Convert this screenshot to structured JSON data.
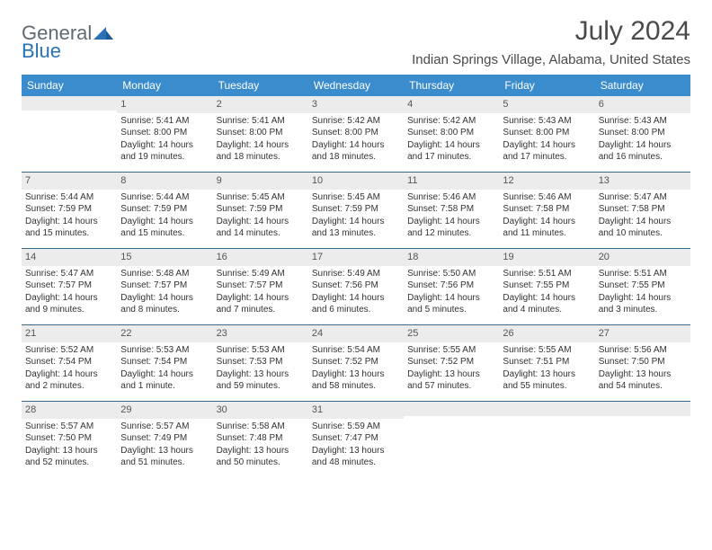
{
  "logo": {
    "text1": "General",
    "text2": "Blue"
  },
  "title": "July 2024",
  "location": "Indian Springs Village, Alabama, United States",
  "colors": {
    "header_bg": "#3b8ccc",
    "header_text": "#ffffff",
    "daynum_bg": "#ececec",
    "week_border": "#3b6a8f",
    "title_color": "#4a4a4a",
    "logo_gray": "#5f6a72",
    "logo_blue": "#2a72b5"
  },
  "daynames": [
    "Sunday",
    "Monday",
    "Tuesday",
    "Wednesday",
    "Thursday",
    "Friday",
    "Saturday"
  ],
  "weeks": [
    [
      {
        "n": "",
        "sr": "",
        "ss": "",
        "dl": ""
      },
      {
        "n": "1",
        "sr": "Sunrise: 5:41 AM",
        "ss": "Sunset: 8:00 PM",
        "dl": "Daylight: 14 hours and 19 minutes."
      },
      {
        "n": "2",
        "sr": "Sunrise: 5:41 AM",
        "ss": "Sunset: 8:00 PM",
        "dl": "Daylight: 14 hours and 18 minutes."
      },
      {
        "n": "3",
        "sr": "Sunrise: 5:42 AM",
        "ss": "Sunset: 8:00 PM",
        "dl": "Daylight: 14 hours and 18 minutes."
      },
      {
        "n": "4",
        "sr": "Sunrise: 5:42 AM",
        "ss": "Sunset: 8:00 PM",
        "dl": "Daylight: 14 hours and 17 minutes."
      },
      {
        "n": "5",
        "sr": "Sunrise: 5:43 AM",
        "ss": "Sunset: 8:00 PM",
        "dl": "Daylight: 14 hours and 17 minutes."
      },
      {
        "n": "6",
        "sr": "Sunrise: 5:43 AM",
        "ss": "Sunset: 8:00 PM",
        "dl": "Daylight: 14 hours and 16 minutes."
      }
    ],
    [
      {
        "n": "7",
        "sr": "Sunrise: 5:44 AM",
        "ss": "Sunset: 7:59 PM",
        "dl": "Daylight: 14 hours and 15 minutes."
      },
      {
        "n": "8",
        "sr": "Sunrise: 5:44 AM",
        "ss": "Sunset: 7:59 PM",
        "dl": "Daylight: 14 hours and 15 minutes."
      },
      {
        "n": "9",
        "sr": "Sunrise: 5:45 AM",
        "ss": "Sunset: 7:59 PM",
        "dl": "Daylight: 14 hours and 14 minutes."
      },
      {
        "n": "10",
        "sr": "Sunrise: 5:45 AM",
        "ss": "Sunset: 7:59 PM",
        "dl": "Daylight: 14 hours and 13 minutes."
      },
      {
        "n": "11",
        "sr": "Sunrise: 5:46 AM",
        "ss": "Sunset: 7:58 PM",
        "dl": "Daylight: 14 hours and 12 minutes."
      },
      {
        "n": "12",
        "sr": "Sunrise: 5:46 AM",
        "ss": "Sunset: 7:58 PM",
        "dl": "Daylight: 14 hours and 11 minutes."
      },
      {
        "n": "13",
        "sr": "Sunrise: 5:47 AM",
        "ss": "Sunset: 7:58 PM",
        "dl": "Daylight: 14 hours and 10 minutes."
      }
    ],
    [
      {
        "n": "14",
        "sr": "Sunrise: 5:47 AM",
        "ss": "Sunset: 7:57 PM",
        "dl": "Daylight: 14 hours and 9 minutes."
      },
      {
        "n": "15",
        "sr": "Sunrise: 5:48 AM",
        "ss": "Sunset: 7:57 PM",
        "dl": "Daylight: 14 hours and 8 minutes."
      },
      {
        "n": "16",
        "sr": "Sunrise: 5:49 AM",
        "ss": "Sunset: 7:57 PM",
        "dl": "Daylight: 14 hours and 7 minutes."
      },
      {
        "n": "17",
        "sr": "Sunrise: 5:49 AM",
        "ss": "Sunset: 7:56 PM",
        "dl": "Daylight: 14 hours and 6 minutes."
      },
      {
        "n": "18",
        "sr": "Sunrise: 5:50 AM",
        "ss": "Sunset: 7:56 PM",
        "dl": "Daylight: 14 hours and 5 minutes."
      },
      {
        "n": "19",
        "sr": "Sunrise: 5:51 AM",
        "ss": "Sunset: 7:55 PM",
        "dl": "Daylight: 14 hours and 4 minutes."
      },
      {
        "n": "20",
        "sr": "Sunrise: 5:51 AM",
        "ss": "Sunset: 7:55 PM",
        "dl": "Daylight: 14 hours and 3 minutes."
      }
    ],
    [
      {
        "n": "21",
        "sr": "Sunrise: 5:52 AM",
        "ss": "Sunset: 7:54 PM",
        "dl": "Daylight: 14 hours and 2 minutes."
      },
      {
        "n": "22",
        "sr": "Sunrise: 5:53 AM",
        "ss": "Sunset: 7:54 PM",
        "dl": "Daylight: 14 hours and 1 minute."
      },
      {
        "n": "23",
        "sr": "Sunrise: 5:53 AM",
        "ss": "Sunset: 7:53 PM",
        "dl": "Daylight: 13 hours and 59 minutes."
      },
      {
        "n": "24",
        "sr": "Sunrise: 5:54 AM",
        "ss": "Sunset: 7:52 PM",
        "dl": "Daylight: 13 hours and 58 minutes."
      },
      {
        "n": "25",
        "sr": "Sunrise: 5:55 AM",
        "ss": "Sunset: 7:52 PM",
        "dl": "Daylight: 13 hours and 57 minutes."
      },
      {
        "n": "26",
        "sr": "Sunrise: 5:55 AM",
        "ss": "Sunset: 7:51 PM",
        "dl": "Daylight: 13 hours and 55 minutes."
      },
      {
        "n": "27",
        "sr": "Sunrise: 5:56 AM",
        "ss": "Sunset: 7:50 PM",
        "dl": "Daylight: 13 hours and 54 minutes."
      }
    ],
    [
      {
        "n": "28",
        "sr": "Sunrise: 5:57 AM",
        "ss": "Sunset: 7:50 PM",
        "dl": "Daylight: 13 hours and 52 minutes."
      },
      {
        "n": "29",
        "sr": "Sunrise: 5:57 AM",
        "ss": "Sunset: 7:49 PM",
        "dl": "Daylight: 13 hours and 51 minutes."
      },
      {
        "n": "30",
        "sr": "Sunrise: 5:58 AM",
        "ss": "Sunset: 7:48 PM",
        "dl": "Daylight: 13 hours and 50 minutes."
      },
      {
        "n": "31",
        "sr": "Sunrise: 5:59 AM",
        "ss": "Sunset: 7:47 PM",
        "dl": "Daylight: 13 hours and 48 minutes."
      },
      {
        "n": "",
        "sr": "",
        "ss": "",
        "dl": ""
      },
      {
        "n": "",
        "sr": "",
        "ss": "",
        "dl": ""
      },
      {
        "n": "",
        "sr": "",
        "ss": "",
        "dl": ""
      }
    ]
  ]
}
